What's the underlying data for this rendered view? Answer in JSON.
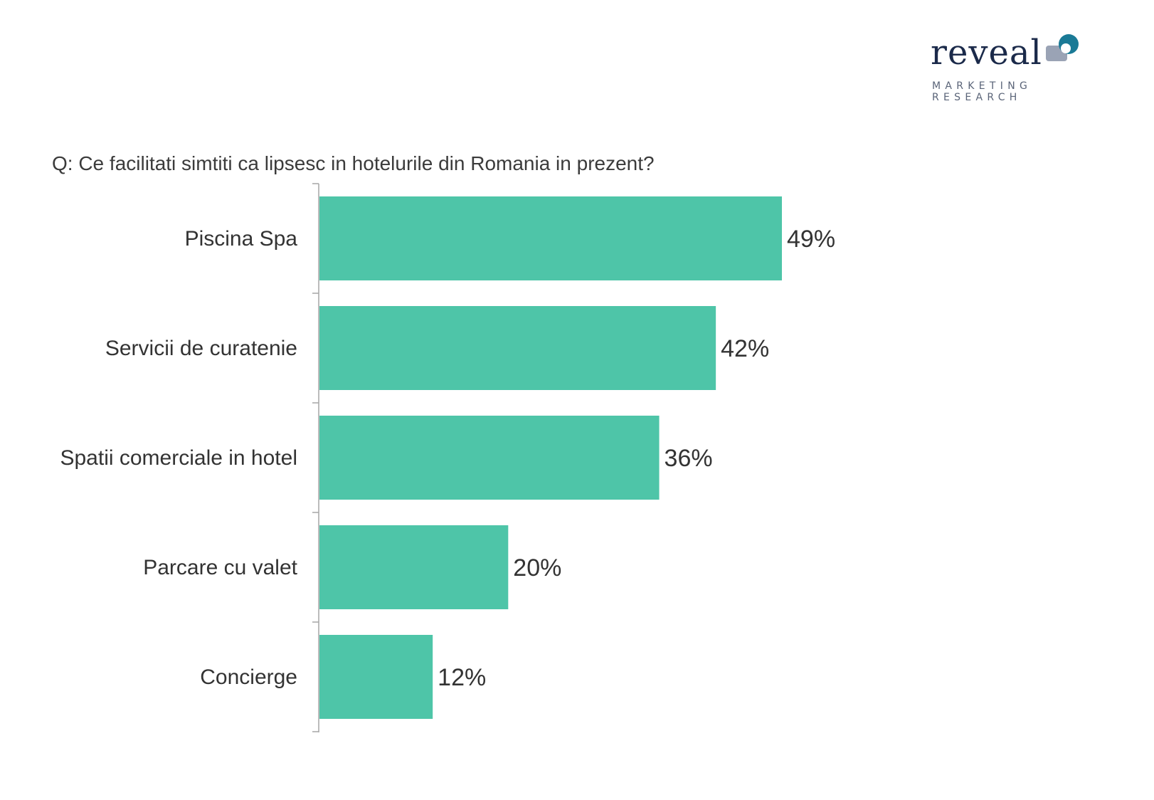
{
  "logo": {
    "word": "reveal",
    "line1": "MARKETING",
    "line2": "RESEARCH",
    "colors": {
      "navy": "#1b2a4a",
      "teal": "#1a7a96",
      "grey": "#9aa3b5"
    }
  },
  "question": "Q: Ce facilitati simtiti ca lipsesc in hotelurile din Romania in prezent?",
  "chart_data": {
    "type": "bar",
    "orientation": "horizontal",
    "title": "",
    "xlabel": "",
    "ylabel": "",
    "categories": [
      "Piscina Spa",
      "Servicii de curatenie",
      "Spatii comerciale in hotel",
      "Parcare cu valet",
      "Concierge"
    ],
    "values": [
      49,
      42,
      36,
      20,
      12
    ],
    "value_labels": [
      "49%",
      "42%",
      "36%",
      "20%",
      "12%"
    ],
    "unit": "%",
    "xlim": [
      0,
      100
    ],
    "grid": false,
    "legend": "none",
    "bar_color": "#4ec5a8"
  }
}
